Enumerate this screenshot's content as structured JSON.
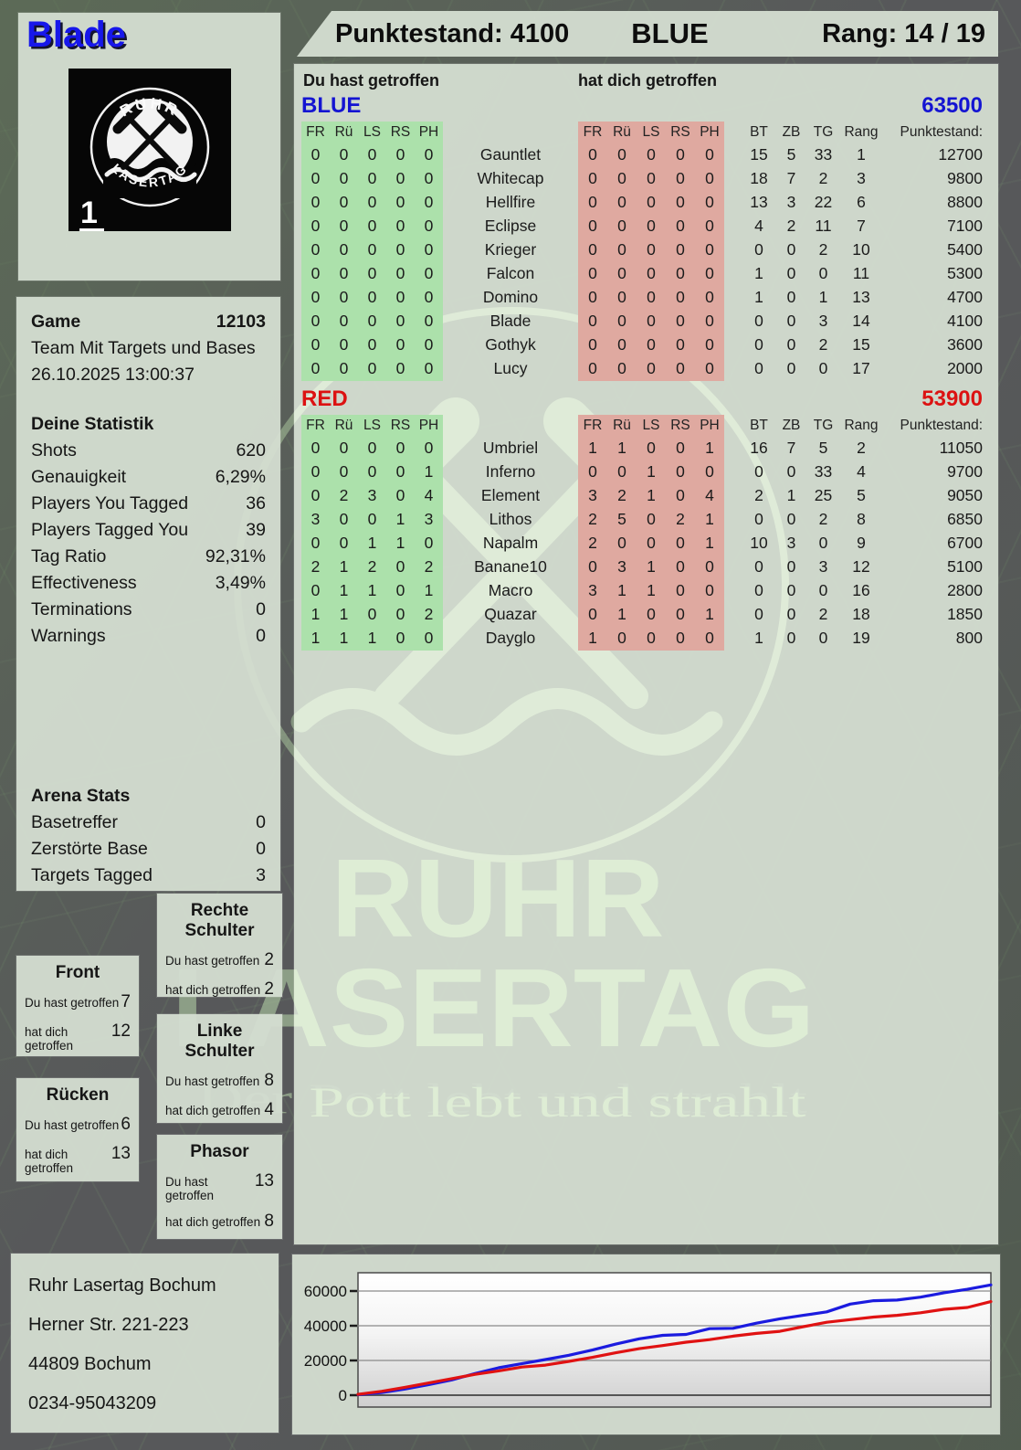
{
  "player": {
    "name": "Blade",
    "badge_number": "1",
    "logo_arc_top": "RUHR",
    "logo_arc_bottom": "LASERTAG"
  },
  "header": {
    "punktestand": "Punktestand: 4100",
    "team": "BLUE",
    "rang": "Rang: 14 / 19"
  },
  "main": {
    "you_hit_label": "Du hast getroffen",
    "hit_you_label": "hat dich getroffen",
    "columns_left": [
      "FR",
      "Rü",
      "LS",
      "RS",
      "PH"
    ],
    "columns_right": [
      "FR",
      "Rü",
      "LS",
      "RS",
      "PH"
    ],
    "columns_stats": [
      "BT",
      "ZB",
      "TG",
      "Rang",
      "Punktestand:"
    ],
    "teams": [
      {
        "name": "BLUE",
        "color": "#1414d2",
        "total": "63500",
        "players": [
          {
            "name": "Gauntlet",
            "you_hit": [
              0,
              0,
              0,
              0,
              0
            ],
            "hit_you": [
              0,
              0,
              0,
              0,
              0
            ],
            "bt": "15",
            "zb": "5",
            "tg": "33",
            "rang": "1",
            "punkte": "12700"
          },
          {
            "name": "Whitecap",
            "you_hit": [
              0,
              0,
              0,
              0,
              0
            ],
            "hit_you": [
              0,
              0,
              0,
              0,
              0
            ],
            "bt": "18",
            "zb": "7",
            "tg": "2",
            "rang": "3",
            "punkte": "9800"
          },
          {
            "name": "Hellfire",
            "you_hit": [
              0,
              0,
              0,
              0,
              0
            ],
            "hit_you": [
              0,
              0,
              0,
              0,
              0
            ],
            "bt": "13",
            "zb": "3",
            "tg": "22",
            "rang": "6",
            "punkte": "8800"
          },
          {
            "name": "Eclipse",
            "you_hit": [
              0,
              0,
              0,
              0,
              0
            ],
            "hit_you": [
              0,
              0,
              0,
              0,
              0
            ],
            "bt": "4",
            "zb": "2",
            "tg": "11",
            "rang": "7",
            "punkte": "7100"
          },
          {
            "name": "Krieger",
            "you_hit": [
              0,
              0,
              0,
              0,
              0
            ],
            "hit_you": [
              0,
              0,
              0,
              0,
              0
            ],
            "bt": "0",
            "zb": "0",
            "tg": "2",
            "rang": "10",
            "punkte": "5400"
          },
          {
            "name": "Falcon",
            "you_hit": [
              0,
              0,
              0,
              0,
              0
            ],
            "hit_you": [
              0,
              0,
              0,
              0,
              0
            ],
            "bt": "1",
            "zb": "0",
            "tg": "0",
            "rang": "11",
            "punkte": "5300"
          },
          {
            "name": "Domino",
            "you_hit": [
              0,
              0,
              0,
              0,
              0
            ],
            "hit_you": [
              0,
              0,
              0,
              0,
              0
            ],
            "bt": "1",
            "zb": "0",
            "tg": "1",
            "rang": "13",
            "punkte": "4700"
          },
          {
            "name": "Blade",
            "you_hit": [
              0,
              0,
              0,
              0,
              0
            ],
            "hit_you": [
              0,
              0,
              0,
              0,
              0
            ],
            "bt": "0",
            "zb": "0",
            "tg": "3",
            "rang": "14",
            "punkte": "4100"
          },
          {
            "name": "Gothyk",
            "you_hit": [
              0,
              0,
              0,
              0,
              0
            ],
            "hit_you": [
              0,
              0,
              0,
              0,
              0
            ],
            "bt": "0",
            "zb": "0",
            "tg": "2",
            "rang": "15",
            "punkte": "3600"
          },
          {
            "name": "Lucy",
            "you_hit": [
              0,
              0,
              0,
              0,
              0
            ],
            "hit_you": [
              0,
              0,
              0,
              0,
              0
            ],
            "bt": "0",
            "zb": "0",
            "tg": "0",
            "rang": "17",
            "punkte": "2000"
          }
        ]
      },
      {
        "name": "RED",
        "color": "#dc1212",
        "total": "53900",
        "players": [
          {
            "name": "Umbriel",
            "you_hit": [
              0,
              0,
              0,
              0,
              0
            ],
            "hit_you": [
              1,
              1,
              0,
              0,
              1
            ],
            "bt": "16",
            "zb": "7",
            "tg": "5",
            "rang": "2",
            "punkte": "11050"
          },
          {
            "name": "Inferno",
            "you_hit": [
              0,
              0,
              0,
              0,
              1
            ],
            "hit_you": [
              0,
              0,
              1,
              0,
              0
            ],
            "bt": "0",
            "zb": "0",
            "tg": "33",
            "rang": "4",
            "punkte": "9700"
          },
          {
            "name": "Element",
            "you_hit": [
              0,
              2,
              3,
              0,
              4
            ],
            "hit_you": [
              3,
              2,
              1,
              0,
              4
            ],
            "bt": "2",
            "zb": "1",
            "tg": "25",
            "rang": "5",
            "punkte": "9050"
          },
          {
            "name": "Lithos",
            "you_hit": [
              3,
              0,
              0,
              1,
              3
            ],
            "hit_you": [
              2,
              5,
              0,
              2,
              1
            ],
            "bt": "0",
            "zb": "0",
            "tg": "2",
            "rang": "8",
            "punkte": "6850"
          },
          {
            "name": "Napalm",
            "you_hit": [
              0,
              0,
              1,
              1,
              0
            ],
            "hit_you": [
              2,
              0,
              0,
              0,
              1
            ],
            "bt": "10",
            "zb": "3",
            "tg": "0",
            "rang": "9",
            "punkte": "6700"
          },
          {
            "name": "Banane10",
            "you_hit": [
              2,
              1,
              2,
              0,
              2
            ],
            "hit_you": [
              0,
              3,
              1,
              0,
              0
            ],
            "bt": "0",
            "zb": "0",
            "tg": "3",
            "rang": "12",
            "punkte": "5100"
          },
          {
            "name": "Macro",
            "you_hit": [
              0,
              1,
              1,
              0,
              1
            ],
            "hit_you": [
              3,
              1,
              1,
              0,
              0
            ],
            "bt": "0",
            "zb": "0",
            "tg": "0",
            "rang": "16",
            "punkte": "2800"
          },
          {
            "name": "Quazar",
            "you_hit": [
              1,
              1,
              0,
              0,
              2
            ],
            "hit_you": [
              0,
              1,
              0,
              0,
              1
            ],
            "bt": "0",
            "zb": "0",
            "tg": "2",
            "rang": "18",
            "punkte": "1850"
          },
          {
            "name": "Dayglo",
            "you_hit": [
              1,
              1,
              1,
              0,
              0
            ],
            "hit_you": [
              1,
              0,
              0,
              0,
              0
            ],
            "bt": "1",
            "zb": "0",
            "tg": "0",
            "rang": "19",
            "punkte": "800"
          }
        ]
      }
    ]
  },
  "game_panel": {
    "game_label": "Game",
    "game_number": "12103",
    "mode": "Team Mit Targets und Bases",
    "datetime": "26.10.2025 13:00:37",
    "stats_title": "Deine Statistik",
    "stats": [
      {
        "label": "Shots",
        "value": "620"
      },
      {
        "label": "Genauigkeit",
        "value": "6,29%"
      },
      {
        "label": "Players You Tagged",
        "value": "36"
      },
      {
        "label": "Players Tagged You",
        "value": "39"
      },
      {
        "label": "Tag Ratio",
        "value": "92,31%"
      },
      {
        "label": "Effectiveness",
        "value": "3,49%"
      },
      {
        "label": "Terminations",
        "value": "0"
      },
      {
        "label": "Warnings",
        "value": "0"
      }
    ],
    "arena_title": "Arena Stats",
    "arena": [
      {
        "label": "Basetreffer",
        "value": "0"
      },
      {
        "label": "Zerstörte Base",
        "value": "0"
      },
      {
        "label": "Targets Tagged",
        "value": "3"
      }
    ]
  },
  "hit_boxes": [
    {
      "title": "Rechte Schulter",
      "rows": [
        {
          "label": "Du hast getroffen",
          "value": "2"
        },
        {
          "label": "hat dich getroffen",
          "value": "2"
        }
      ]
    },
    {
      "title": "Front",
      "rows": [
        {
          "label": "Du hast getroffen",
          "value": "7"
        },
        {
          "label": "hat dich getroffen",
          "value": "12"
        }
      ]
    },
    {
      "title": "Linke Schulter",
      "rows": [
        {
          "label": "Du hast getroffen",
          "value": "8"
        },
        {
          "label": "hat dich getroffen",
          "value": "4"
        }
      ]
    },
    {
      "title": "Rücken",
      "rows": [
        {
          "label": "Du hast getroffen",
          "value": "6"
        },
        {
          "label": "hat dich getroffen",
          "value": "13"
        }
      ]
    },
    {
      "title": "Phasor",
      "rows": [
        {
          "label": "Du hast getroffen",
          "value": "13"
        },
        {
          "label": "hat dich getroffen",
          "value": "8"
        }
      ]
    }
  ],
  "address": {
    "lines": [
      "Ruhr Lasertag Bochum",
      "Herner Str. 221-223",
      "44809 Bochum",
      "0234-95043209"
    ]
  },
  "watermark": {
    "line1": "RUHR",
    "line2": "LASERTAG",
    "slogan": "Der Pott lebt und strahlt"
  },
  "chart_data": {
    "type": "line",
    "title": "",
    "xlabel": "",
    "ylabel": "",
    "yticks": [
      0,
      20000,
      40000,
      60000
    ],
    "ylim": [
      0,
      70500
    ],
    "grid": true,
    "legend": "none",
    "series": [
      {
        "name": "BLUE",
        "color": "#1b1bdf",
        "values": [
          300,
          1500,
          3500,
          6000,
          8800,
          12500,
          15800,
          18200,
          20500,
          23000,
          26000,
          29400,
          32500,
          34500,
          35000,
          38300,
          38500,
          41500,
          44000,
          46000,
          48000,
          52500,
          54400,
          54800,
          56500,
          59000,
          61000,
          63500
        ]
      },
      {
        "name": "RED",
        "color": "#e01212",
        "values": [
          500,
          2200,
          4500,
          7000,
          9500,
          12000,
          14000,
          16200,
          17300,
          19500,
          21800,
          24400,
          26800,
          28600,
          30500,
          32000,
          34000,
          35600,
          36800,
          39500,
          42000,
          43500,
          45000,
          46000,
          47500,
          49500,
          50500,
          53900
        ]
      }
    ]
  }
}
